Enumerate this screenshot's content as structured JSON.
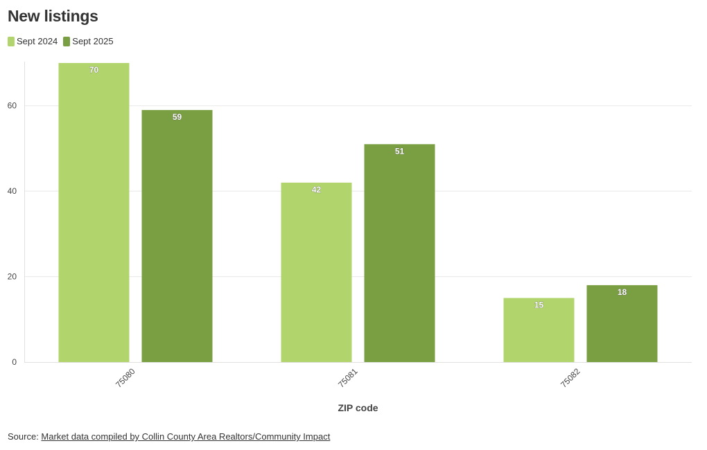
{
  "chart_data": {
    "type": "bar",
    "title": "New listings",
    "xlabel": "ZIP code",
    "ylabel": "",
    "categories": [
      "75080",
      "75081",
      "75082"
    ],
    "series": [
      {
        "name": "Sept 2024",
        "values": [
          70,
          42,
          15
        ],
        "color": "#b1d56c"
      },
      {
        "name": "Sept 2025",
        "values": [
          59,
          51,
          18
        ],
        "color": "#7a9f42"
      }
    ],
    "ylim": [
      0,
      70
    ],
    "yticks": [
      0,
      20,
      40,
      60
    ],
    "grid": true,
    "legend_position": "top-left"
  },
  "source": {
    "prefix": "Source: ",
    "link_text": "Market data compiled by Collin County Area Realtors/Community Impact"
  }
}
